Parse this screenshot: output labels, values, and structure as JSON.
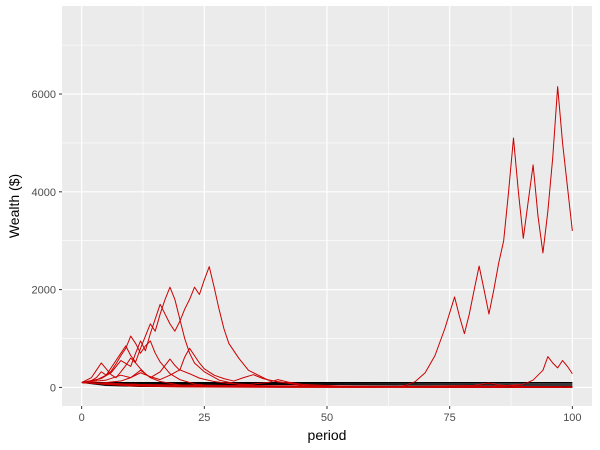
{
  "chart_data": {
    "type": "line",
    "title": "",
    "xlabel": "period",
    "ylabel": "Wealth ($)",
    "xlim": [
      -4,
      104
    ],
    "ylim": [
      -380,
      7800
    ],
    "x_ticks": [
      0,
      25,
      50,
      75,
      100
    ],
    "x_tick_labels": [
      "0",
      "25",
      "50",
      "75",
      "100"
    ],
    "y_ticks": [
      0,
      2000,
      4000,
      6000
    ],
    "y_tick_labels": [
      "0",
      "2000",
      "4000",
      "6000"
    ],
    "grid": true,
    "legend": "none",
    "series": [
      {
        "color": "#000000",
        "points": [
          [
            0,
            100
          ],
          [
            20,
            100
          ],
          [
            50,
            100
          ],
          [
            100,
            100
          ]
        ]
      },
      {
        "color": "#000000",
        "points": [
          [
            0,
            100
          ],
          [
            8,
            85
          ],
          [
            20,
            80
          ],
          [
            60,
            78
          ],
          [
            100,
            75
          ]
        ]
      },
      {
        "color": "#000000",
        "points": [
          [
            0,
            100
          ],
          [
            10,
            70
          ],
          [
            30,
            60
          ],
          [
            70,
            55
          ],
          [
            100,
            50
          ]
        ]
      },
      {
        "color": "#000000",
        "points": [
          [
            0,
            100
          ],
          [
            6,
            50
          ],
          [
            15,
            35
          ],
          [
            40,
            30
          ],
          [
            100,
            25
          ]
        ]
      },
      {
        "color": "#000000",
        "points": [
          [
            0,
            100
          ],
          [
            5,
            40
          ],
          [
            12,
            20
          ],
          [
            40,
            10
          ],
          [
            100,
            5
          ]
        ]
      },
      {
        "color": "#cc0000",
        "points": [
          [
            0,
            100
          ],
          [
            12,
            60
          ],
          [
            20,
            30
          ],
          [
            35,
            20
          ],
          [
            60,
            15
          ],
          [
            100,
            10
          ]
        ]
      },
      {
        "color": "#cc0000",
        "points": [
          [
            0,
            100
          ],
          [
            4,
            180
          ],
          [
            6,
            300
          ],
          [
            8,
            550
          ],
          [
            10,
            430
          ],
          [
            11,
            700
          ],
          [
            12,
            950
          ],
          [
            13,
            750
          ],
          [
            14,
            1100
          ],
          [
            15,
            1400
          ],
          [
            16,
            1700
          ],
          [
            17,
            1500
          ],
          [
            18,
            1300
          ],
          [
            19,
            1150
          ],
          [
            20,
            1350
          ],
          [
            21,
            1600
          ],
          [
            22,
            1800
          ],
          [
            23,
            2050
          ],
          [
            24,
            1900
          ],
          [
            25,
            2200
          ],
          [
            26,
            2470
          ],
          [
            27,
            2050
          ],
          [
            28,
            1600
          ],
          [
            29,
            1200
          ],
          [
            30,
            900
          ],
          [
            32,
            600
          ],
          [
            34,
            350
          ],
          [
            38,
            150
          ],
          [
            45,
            40
          ],
          [
            55,
            10
          ],
          [
            70,
            5
          ],
          [
            100,
            2
          ]
        ]
      },
      {
        "color": "#cc0000",
        "points": [
          [
            0,
            100
          ],
          [
            3,
            150
          ],
          [
            5,
            250
          ],
          [
            6,
            400
          ],
          [
            7,
            550
          ],
          [
            8,
            700
          ],
          [
            9,
            850
          ],
          [
            10,
            650
          ],
          [
            11,
            520
          ],
          [
            12,
            800
          ],
          [
            13,
            1050
          ],
          [
            14,
            1300
          ],
          [
            15,
            1150
          ],
          [
            16,
            1500
          ],
          [
            17,
            1800
          ],
          [
            18,
            2050
          ],
          [
            19,
            1800
          ],
          [
            20,
            1400
          ],
          [
            21,
            1000
          ],
          [
            22,
            700
          ],
          [
            23,
            500
          ],
          [
            25,
            320
          ],
          [
            28,
            150
          ],
          [
            32,
            60
          ],
          [
            40,
            15
          ],
          [
            60,
            3
          ],
          [
            100,
            1
          ]
        ]
      },
      {
        "color": "#cc0000",
        "points": [
          [
            0,
            100
          ],
          [
            2,
            140
          ],
          [
            3,
            200
          ],
          [
            4,
            320
          ],
          [
            5,
            250
          ],
          [
            6,
            330
          ],
          [
            7,
            480
          ],
          [
            8,
            650
          ],
          [
            9,
            800
          ],
          [
            10,
            1050
          ],
          [
            11,
            900
          ],
          [
            12,
            700
          ],
          [
            13,
            850
          ],
          [
            14,
            950
          ],
          [
            15,
            700
          ],
          [
            16,
            520
          ],
          [
            17,
            400
          ],
          [
            18,
            280
          ],
          [
            20,
            160
          ],
          [
            23,
            70
          ],
          [
            28,
            20
          ],
          [
            40,
            5
          ],
          [
            100,
            1
          ]
        ]
      },
      {
        "color": "#cc0000",
        "points": [
          [
            0,
            100
          ],
          [
            2,
            200
          ],
          [
            3,
            350
          ],
          [
            4,
            500
          ],
          [
            5,
            380
          ],
          [
            6,
            260
          ],
          [
            7,
            200
          ],
          [
            8,
            320
          ],
          [
            9,
            450
          ],
          [
            10,
            600
          ],
          [
            11,
            500
          ],
          [
            12,
            380
          ],
          [
            13,
            280
          ],
          [
            14,
            200
          ],
          [
            16,
            120
          ],
          [
            20,
            50
          ],
          [
            30,
            10
          ],
          [
            100,
            1
          ]
        ]
      },
      {
        "color": "#cc0000",
        "points": [
          [
            0,
            100
          ],
          [
            5,
            150
          ],
          [
            8,
            250
          ],
          [
            10,
            200
          ],
          [
            12,
            350
          ],
          [
            13,
            280
          ],
          [
            14,
            200
          ],
          [
            16,
            320
          ],
          [
            18,
            580
          ],
          [
            19,
            450
          ],
          [
            20,
            350
          ],
          [
            21,
            620
          ],
          [
            22,
            800
          ],
          [
            23,
            650
          ],
          [
            24,
            500
          ],
          [
            25,
            380
          ],
          [
            27,
            250
          ],
          [
            29,
            180
          ],
          [
            31,
            130
          ],
          [
            33,
            200
          ],
          [
            35,
            260
          ],
          [
            37,
            180
          ],
          [
            40,
            110
          ],
          [
            45,
            60
          ],
          [
            55,
            20
          ],
          [
            70,
            5
          ],
          [
            100,
            1
          ]
        ]
      },
      {
        "color": "#cc0000",
        "points": [
          [
            0,
            100
          ],
          [
            4,
            90
          ],
          [
            8,
            130
          ],
          [
            10,
            200
          ],
          [
            12,
            300
          ],
          [
            14,
            220
          ],
          [
            16,
            160
          ],
          [
            18,
            250
          ],
          [
            20,
            360
          ],
          [
            22,
            280
          ],
          [
            24,
            190
          ],
          [
            27,
            120
          ],
          [
            30,
            80
          ],
          [
            34,
            60
          ],
          [
            38,
            100
          ],
          [
            40,
            160
          ],
          [
            42,
            110
          ],
          [
            45,
            60
          ],
          [
            50,
            30
          ],
          [
            60,
            10
          ],
          [
            100,
            2
          ]
        ]
      },
      {
        "color": "#cc0000",
        "points": [
          [
            0,
            100
          ],
          [
            6,
            80
          ],
          [
            12,
            60
          ],
          [
            20,
            50
          ],
          [
            30,
            40
          ],
          [
            40,
            35
          ],
          [
            50,
            30
          ],
          [
            60,
            25
          ],
          [
            70,
            20
          ],
          [
            80,
            15
          ],
          [
            90,
            12
          ],
          [
            100,
            10
          ]
        ]
      },
      {
        "color": "#cc0000",
        "points": [
          [
            0,
            100
          ],
          [
            10,
            40
          ],
          [
            20,
            20
          ],
          [
            30,
            25
          ],
          [
            40,
            30
          ],
          [
            50,
            20
          ],
          [
            60,
            15
          ],
          [
            70,
            25
          ],
          [
            80,
            40
          ],
          [
            83,
            90
          ],
          [
            85,
            50
          ],
          [
            90,
            20
          ],
          [
            100,
            10
          ]
        ]
      },
      {
        "color": "#cc0000",
        "points": [
          [
            0,
            100
          ],
          [
            5,
            60
          ],
          [
            10,
            30
          ],
          [
            20,
            10
          ],
          [
            30,
            5
          ],
          [
            50,
            3
          ],
          [
            60,
            5
          ],
          [
            70,
            10
          ],
          [
            75,
            15
          ],
          [
            80,
            25
          ],
          [
            85,
            30
          ],
          [
            90,
            60
          ],
          [
            92,
            150
          ],
          [
            94,
            350
          ],
          [
            95,
            630
          ],
          [
            96,
            500
          ],
          [
            97,
            400
          ],
          [
            98,
            550
          ],
          [
            99,
            430
          ],
          [
            100,
            280
          ]
        ]
      },
      {
        "color": "#cc0000",
        "points": [
          [
            0,
            100
          ],
          [
            10,
            50
          ],
          [
            20,
            25
          ],
          [
            30,
            10
          ],
          [
            40,
            5
          ],
          [
            50,
            3
          ],
          [
            55,
            2
          ],
          [
            60,
            4
          ],
          [
            64,
            15
          ],
          [
            66,
            40
          ],
          [
            68,
            120
          ],
          [
            70,
            300
          ],
          [
            72,
            650
          ],
          [
            74,
            1200
          ],
          [
            76,
            1850
          ],
          [
            77,
            1450
          ],
          [
            78,
            1100
          ],
          [
            79,
            1500
          ],
          [
            80,
            2000
          ],
          [
            81,
            2480
          ],
          [
            82,
            2000
          ],
          [
            83,
            1500
          ],
          [
            84,
            2000
          ],
          [
            85,
            2550
          ],
          [
            86,
            3000
          ],
          [
            87,
            4000
          ],
          [
            88,
            5100
          ],
          [
            89,
            4000
          ],
          [
            90,
            3050
          ],
          [
            91,
            3800
          ],
          [
            92,
            4550
          ],
          [
            93,
            3500
          ],
          [
            94,
            2750
          ],
          [
            95,
            3600
          ],
          [
            96,
            4700
          ],
          [
            97,
            6150
          ],
          [
            98,
            5000
          ],
          [
            99,
            4100
          ],
          [
            100,
            3200
          ]
        ]
      }
    ]
  }
}
